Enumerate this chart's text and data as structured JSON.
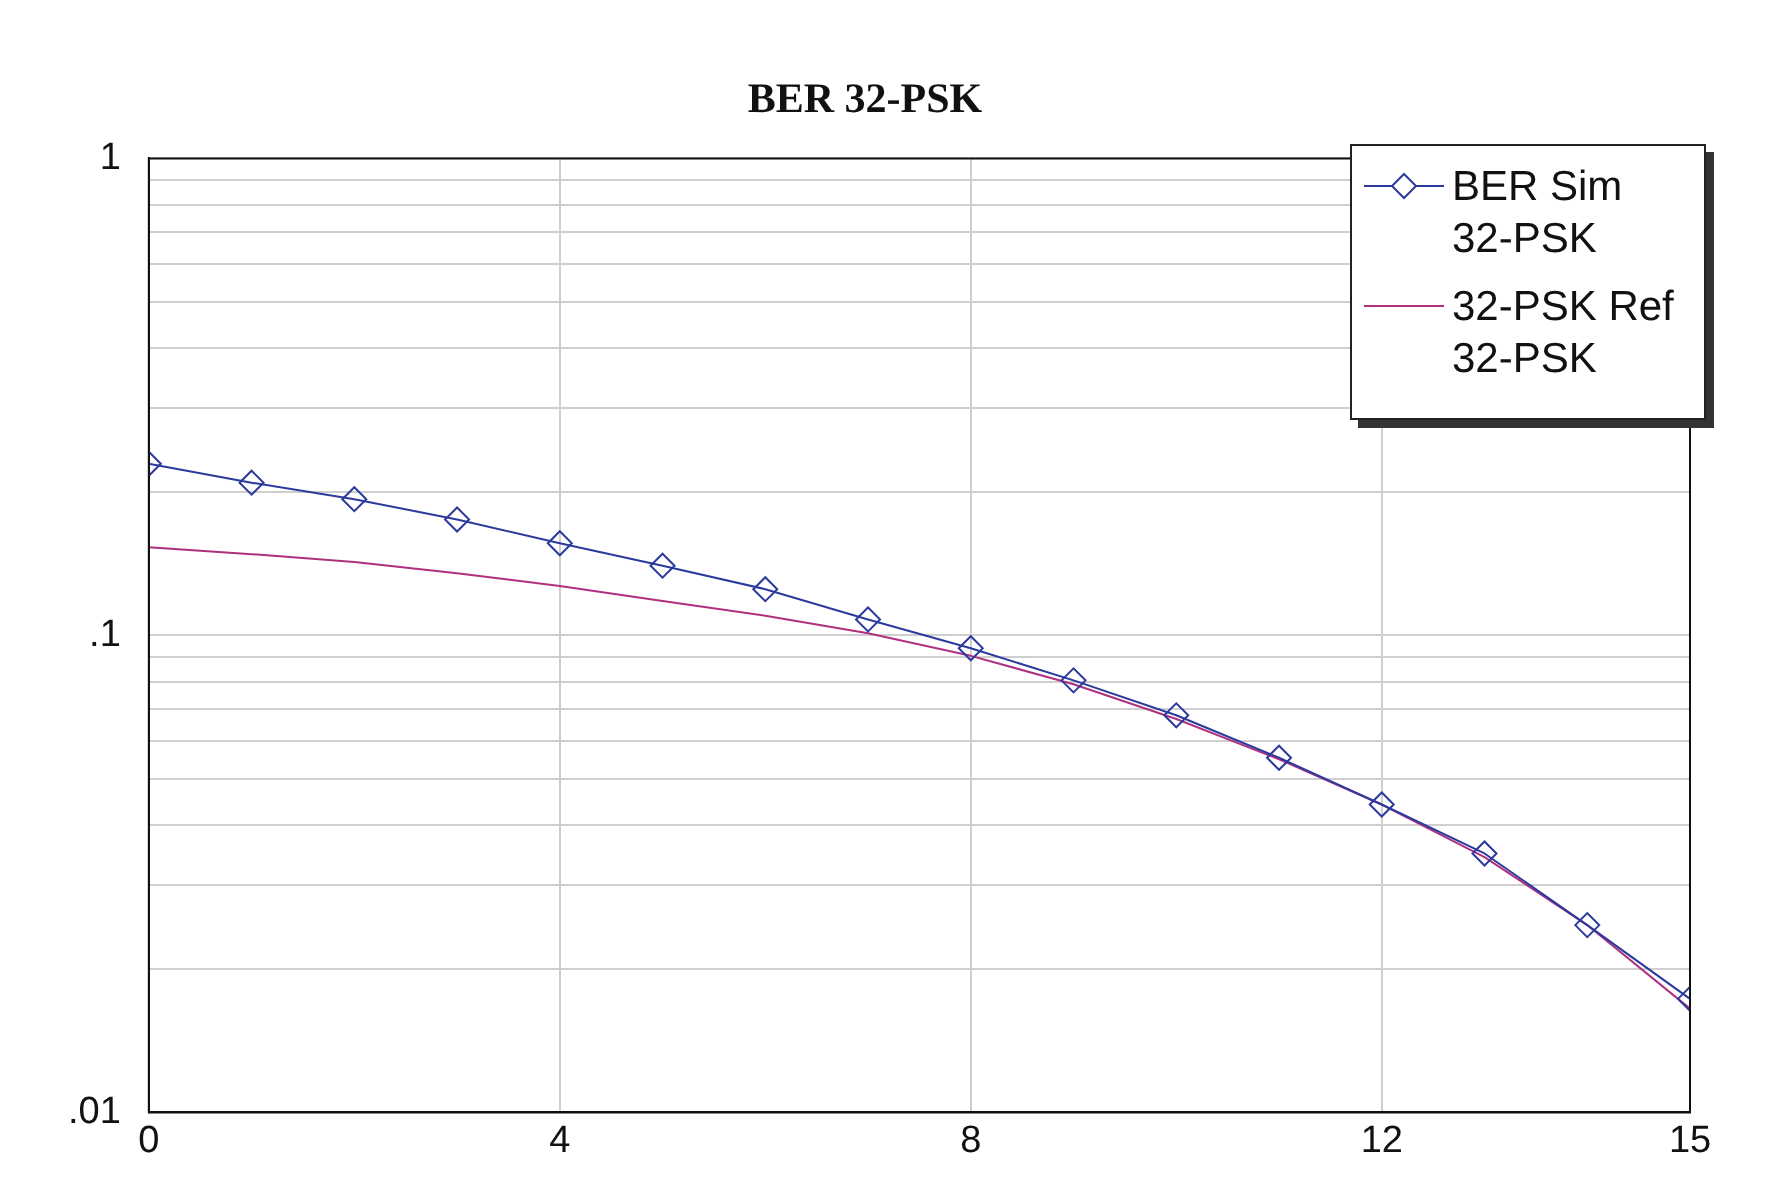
{
  "chart_data": {
    "type": "line",
    "title": "BER 32-PSK",
    "x": [
      0,
      1,
      2,
      3,
      4,
      5,
      6,
      7,
      8,
      9,
      10,
      11,
      12,
      13,
      14,
      15
    ],
    "series": [
      {
        "name": "BER Sim 32-PSK",
        "color": "#2b3a9c",
        "marker": "diamond",
        "values": [
          0.229,
          0.209,
          0.193,
          0.175,
          0.156,
          0.14,
          0.125,
          0.108,
          0.094,
          0.0805,
          0.068,
          0.0554,
          0.0442,
          0.0349,
          0.0247,
          0.0173
        ]
      },
      {
        "name": "32-PSK Ref 32-PSK",
        "color": "#b03080",
        "marker": "none",
        "values": [
          0.153,
          0.148,
          0.1425,
          0.135,
          0.127,
          0.118,
          0.11,
          0.101,
          0.0906,
          0.079,
          0.0668,
          0.055,
          0.0442,
          0.0343,
          0.0247,
          0.0165
        ]
      }
    ],
    "log": "y",
    "xlim": [
      0,
      15
    ],
    "xticks": [
      0,
      4,
      8,
      12,
      15
    ],
    "ylim": [
      0.01,
      1
    ],
    "yticks": [
      {
        "value": 0.01,
        "label": ".01"
      },
      {
        "value": 0.02,
        "label": null
      },
      {
        "value": 0.03,
        "label": null
      },
      {
        "value": 0.04,
        "label": null
      },
      {
        "value": 0.05,
        "label": null
      },
      {
        "value": 0.06,
        "label": null
      },
      {
        "value": 0.07,
        "label": null
      },
      {
        "value": 0.08,
        "label": null
      },
      {
        "value": 0.09,
        "label": null
      },
      {
        "value": 0.1,
        "label": ".1"
      },
      {
        "value": 0.2,
        "label": null
      },
      {
        "value": 0.3,
        "label": null
      },
      {
        "value": 0.4,
        "label": null
      },
      {
        "value": 0.5,
        "label": null
      },
      {
        "value": 0.6,
        "label": null
      },
      {
        "value": 0.7,
        "label": null
      },
      {
        "value": 0.8,
        "label": null
      },
      {
        "value": 0.9,
        "label": null
      },
      {
        "value": 1,
        "label": "1"
      }
    ],
    "grid": true,
    "legend": "top right",
    "line_style": "solid"
  }
}
